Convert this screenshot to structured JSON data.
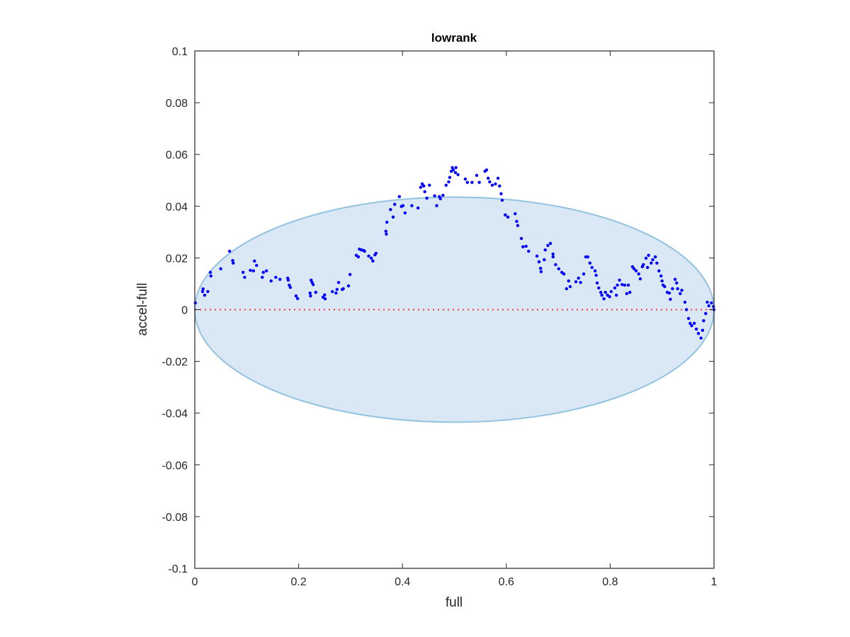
{
  "chart_data": {
    "type": "scatter",
    "title": "lowrank",
    "xlabel": "full",
    "ylabel": "accel-full",
    "xlim": [
      0,
      1
    ],
    "ylim": [
      -0.1,
      0.1
    ],
    "xticks": [
      "0",
      "0.2",
      "0.4",
      "0.6",
      "0.8",
      "1"
    ],
    "xtick_values": [
      0,
      0.2,
      0.4,
      0.6,
      0.8,
      1
    ],
    "yticks": [
      "-0.1",
      "-0.08",
      "-0.06",
      "-0.04",
      "-0.02",
      "0",
      "0.02",
      "0.04",
      "0.06",
      "0.08",
      "0.1"
    ],
    "ytick_values": [
      -0.1,
      -0.08,
      -0.06,
      -0.04,
      -0.02,
      0,
      0.02,
      0.04,
      0.06,
      0.08,
      0.1
    ],
    "grid": false,
    "ellipse": {
      "center": [
        0.5,
        0
      ],
      "radius_x": 0.5,
      "radius_y": 0.0435,
      "fill": "#d9e8f4",
      "stroke": "#94c3e0"
    },
    "reference_line": {
      "y": 0,
      "style": "dotted",
      "color": "#ff3333"
    },
    "series": [
      {
        "name": "points",
        "color": "#0000ff",
        "points": [
          [
            0.001,
            0.0026
          ],
          [
            0.015,
            0.007
          ],
          [
            0.016,
            0.008
          ],
          [
            0.019,
            0.0056
          ],
          [
            0.025,
            0.007
          ],
          [
            0.03,
            0.0144
          ],
          [
            0.031,
            0.013
          ],
          [
            0.05,
            0.0158
          ],
          [
            0.067,
            0.0226
          ],
          [
            0.073,
            0.019
          ],
          [
            0.074,
            0.018
          ],
          [
            0.093,
            0.0144
          ],
          [
            0.096,
            0.0125
          ],
          [
            0.107,
            0.0152
          ],
          [
            0.113,
            0.015
          ],
          [
            0.115,
            0.0188
          ],
          [
            0.119,
            0.0171
          ],
          [
            0.13,
            0.0125
          ],
          [
            0.132,
            0.0144
          ],
          [
            0.138,
            0.015
          ],
          [
            0.147,
            0.0111
          ],
          [
            0.156,
            0.0125
          ],
          [
            0.164,
            0.0117
          ],
          [
            0.179,
            0.0122
          ],
          [
            0.18,
            0.0114
          ],
          [
            0.182,
            0.0095
          ],
          [
            0.184,
            0.0086
          ],
          [
            0.195,
            0.0053
          ],
          [
            0.198,
            0.0043
          ],
          [
            0.222,
            0.0064
          ],
          [
            0.223,
            0.0053
          ],
          [
            0.224,
            0.0114
          ],
          [
            0.226,
            0.0105
          ],
          [
            0.228,
            0.0097
          ],
          [
            0.233,
            0.0067
          ],
          [
            0.247,
            0.0048
          ],
          [
            0.25,
            0.0057
          ],
          [
            0.251,
            0.0042
          ],
          [
            0.265,
            0.007
          ],
          [
            0.272,
            0.0064
          ],
          [
            0.274,
            0.0078
          ],
          [
            0.277,
            0.0105
          ],
          [
            0.284,
            0.0078
          ],
          [
            0.286,
            0.0081
          ],
          [
            0.296,
            0.0092
          ],
          [
            0.299,
            0.0136
          ],
          [
            0.311,
            0.021
          ],
          [
            0.315,
            0.0204
          ],
          [
            0.317,
            0.0234
          ],
          [
            0.321,
            0.0231
          ],
          [
            0.325,
            0.0229
          ],
          [
            0.327,
            0.0226
          ],
          [
            0.335,
            0.0207
          ],
          [
            0.34,
            0.0199
          ],
          [
            0.343,
            0.0188
          ],
          [
            0.347,
            0.0212
          ],
          [
            0.349,
            0.0218
          ],
          [
            0.368,
            0.0303
          ],
          [
            0.369,
            0.0292
          ],
          [
            0.37,
            0.0338
          ],
          [
            0.377,
            0.0387
          ],
          [
            0.382,
            0.0358
          ],
          [
            0.385,
            0.0407
          ],
          [
            0.394,
            0.0437
          ],
          [
            0.398,
            0.0399
          ],
          [
            0.401,
            0.0402
          ],
          [
            0.405,
            0.0374
          ],
          [
            0.418,
            0.0402
          ],
          [
            0.43,
            0.0393
          ],
          [
            0.435,
            0.0473
          ],
          [
            0.438,
            0.0486
          ],
          [
            0.441,
            0.0478
          ],
          [
            0.443,
            0.0456
          ],
          [
            0.447,
            0.0431
          ],
          [
            0.452,
            0.0481
          ],
          [
            0.462,
            0.044
          ],
          [
            0.466,
            0.0402
          ],
          [
            0.471,
            0.0437
          ],
          [
            0.473,
            0.0429
          ],
          [
            0.478,
            0.0442
          ],
          [
            0.484,
            0.0481
          ],
          [
            0.489,
            0.0494
          ],
          [
            0.491,
            0.0511
          ],
          [
            0.494,
            0.0535
          ],
          [
            0.496,
            0.0549
          ],
          [
            0.498,
            0.054
          ],
          [
            0.502,
            0.053
          ],
          [
            0.503,
            0.0549
          ],
          [
            0.507,
            0.0522
          ],
          [
            0.521,
            0.0505
          ],
          [
            0.525,
            0.0492
          ],
          [
            0.534,
            0.0492
          ],
          [
            0.543,
            0.0519
          ],
          [
            0.548,
            0.0492
          ],
          [
            0.559,
            0.0535
          ],
          [
            0.562,
            0.054
          ],
          [
            0.565,
            0.0508
          ],
          [
            0.568,
            0.0494
          ],
          [
            0.573,
            0.0481
          ],
          [
            0.579,
            0.0486
          ],
          [
            0.584,
            0.0508
          ],
          [
            0.587,
            0.0478
          ],
          [
            0.59,
            0.0448
          ],
          [
            0.592,
            0.0423
          ],
          [
            0.598,
            0.0366
          ],
          [
            0.603,
            0.0358
          ],
          [
            0.617,
            0.0371
          ],
          [
            0.62,
            0.0341
          ],
          [
            0.622,
            0.0325
          ],
          [
            0.629,
            0.0275
          ],
          [
            0.632,
            0.0243
          ],
          [
            0.638,
            0.0245
          ],
          [
            0.643,
            0.0226
          ],
          [
            0.659,
            0.0207
          ],
          [
            0.663,
            0.0185
          ],
          [
            0.666,
            0.016
          ],
          [
            0.667,
            0.0147
          ],
          [
            0.673,
            0.0193
          ],
          [
            0.675,
            0.0231
          ],
          [
            0.68,
            0.0248
          ],
          [
            0.685,
            0.0256
          ],
          [
            0.69,
            0.0215
          ],
          [
            0.69,
            0.0204
          ],
          [
            0.695,
            0.0174
          ],
          [
            0.701,
            0.0158
          ],
          [
            0.707,
            0.0144
          ],
          [
            0.711,
            0.0138
          ],
          [
            0.716,
            0.0081
          ],
          [
            0.72,
            0.0111
          ],
          [
            0.723,
            0.0089
          ],
          [
            0.734,
            0.0108
          ],
          [
            0.739,
            0.0122
          ],
          [
            0.743,
            0.0105
          ],
          [
            0.749,
            0.0138
          ],
          [
            0.753,
            0.0204
          ],
          [
            0.757,
            0.0204
          ],
          [
            0.761,
            0.018
          ],
          [
            0.765,
            0.0163
          ],
          [
            0.771,
            0.015
          ],
          [
            0.773,
            0.0133
          ],
          [
            0.775,
            0.0103
          ],
          [
            0.778,
            0.0084
          ],
          [
            0.782,
            0.0067
          ],
          [
            0.784,
            0.0056
          ],
          [
            0.788,
            0.0042
          ],
          [
            0.791,
            0.0067
          ],
          [
            0.795,
            0.0056
          ],
          [
            0.799,
            0.005
          ],
          [
            0.802,
            0.007
          ],
          [
            0.809,
            0.0084
          ],
          [
            0.812,
            0.0056
          ],
          [
            0.814,
            0.0095
          ],
          [
            0.818,
            0.0114
          ],
          [
            0.823,
            0.0097
          ],
          [
            0.828,
            0.0095
          ],
          [
            0.832,
            0.0062
          ],
          [
            0.835,
            0.0095
          ],
          [
            0.838,
            0.0067
          ],
          [
            0.843,
            0.0166
          ],
          [
            0.846,
            0.0158
          ],
          [
            0.85,
            0.015
          ],
          [
            0.855,
            0.0138
          ],
          [
            0.858,
            0.0119
          ],
          [
            0.862,
            0.0166
          ],
          [
            0.864,
            0.0174
          ],
          [
            0.869,
            0.0199
          ],
          [
            0.872,
            0.0163
          ],
          [
            0.874,
            0.021
          ],
          [
            0.879,
            0.018
          ],
          [
            0.882,
            0.0193
          ],
          [
            0.887,
            0.0204
          ],
          [
            0.89,
            0.018
          ],
          [
            0.894,
            0.015
          ],
          [
            0.898,
            0.013
          ],
          [
            0.9,
            0.0111
          ],
          [
            0.902,
            0.0095
          ],
          [
            0.905,
            0.0089
          ],
          [
            0.91,
            0.0067
          ],
          [
            0.914,
            0.0064
          ],
          [
            0.916,
            0.004
          ],
          [
            0.92,
            0.0081
          ],
          [
            0.925,
            0.0117
          ],
          [
            0.928,
            0.0103
          ],
          [
            0.93,
            0.0081
          ],
          [
            0.935,
            0.0062
          ],
          [
            0.938,
            0.0075
          ],
          [
            0.944,
            0.0029
          ],
          [
            0.947,
            0.0
          ],
          [
            0.951,
            -0.0034
          ],
          [
            0.954,
            -0.0053
          ],
          [
            0.957,
            -0.0062
          ],
          [
            0.962,
            -0.0053
          ],
          [
            0.966,
            -0.0075
          ],
          [
            0.97,
            -0.0092
          ],
          [
            0.975,
            -0.011
          ],
          [
            0.978,
            -0.008
          ],
          [
            0.98,
            -0.0043
          ],
          [
            0.984,
            -0.0015
          ],
          [
            0.987,
            0.0029
          ],
          [
            0.99,
            0.0015
          ],
          [
            0.995,
            0.0026
          ],
          [
            0.999,
            0.0012
          ],
          [
            1.0,
            0.0
          ]
        ]
      }
    ]
  }
}
